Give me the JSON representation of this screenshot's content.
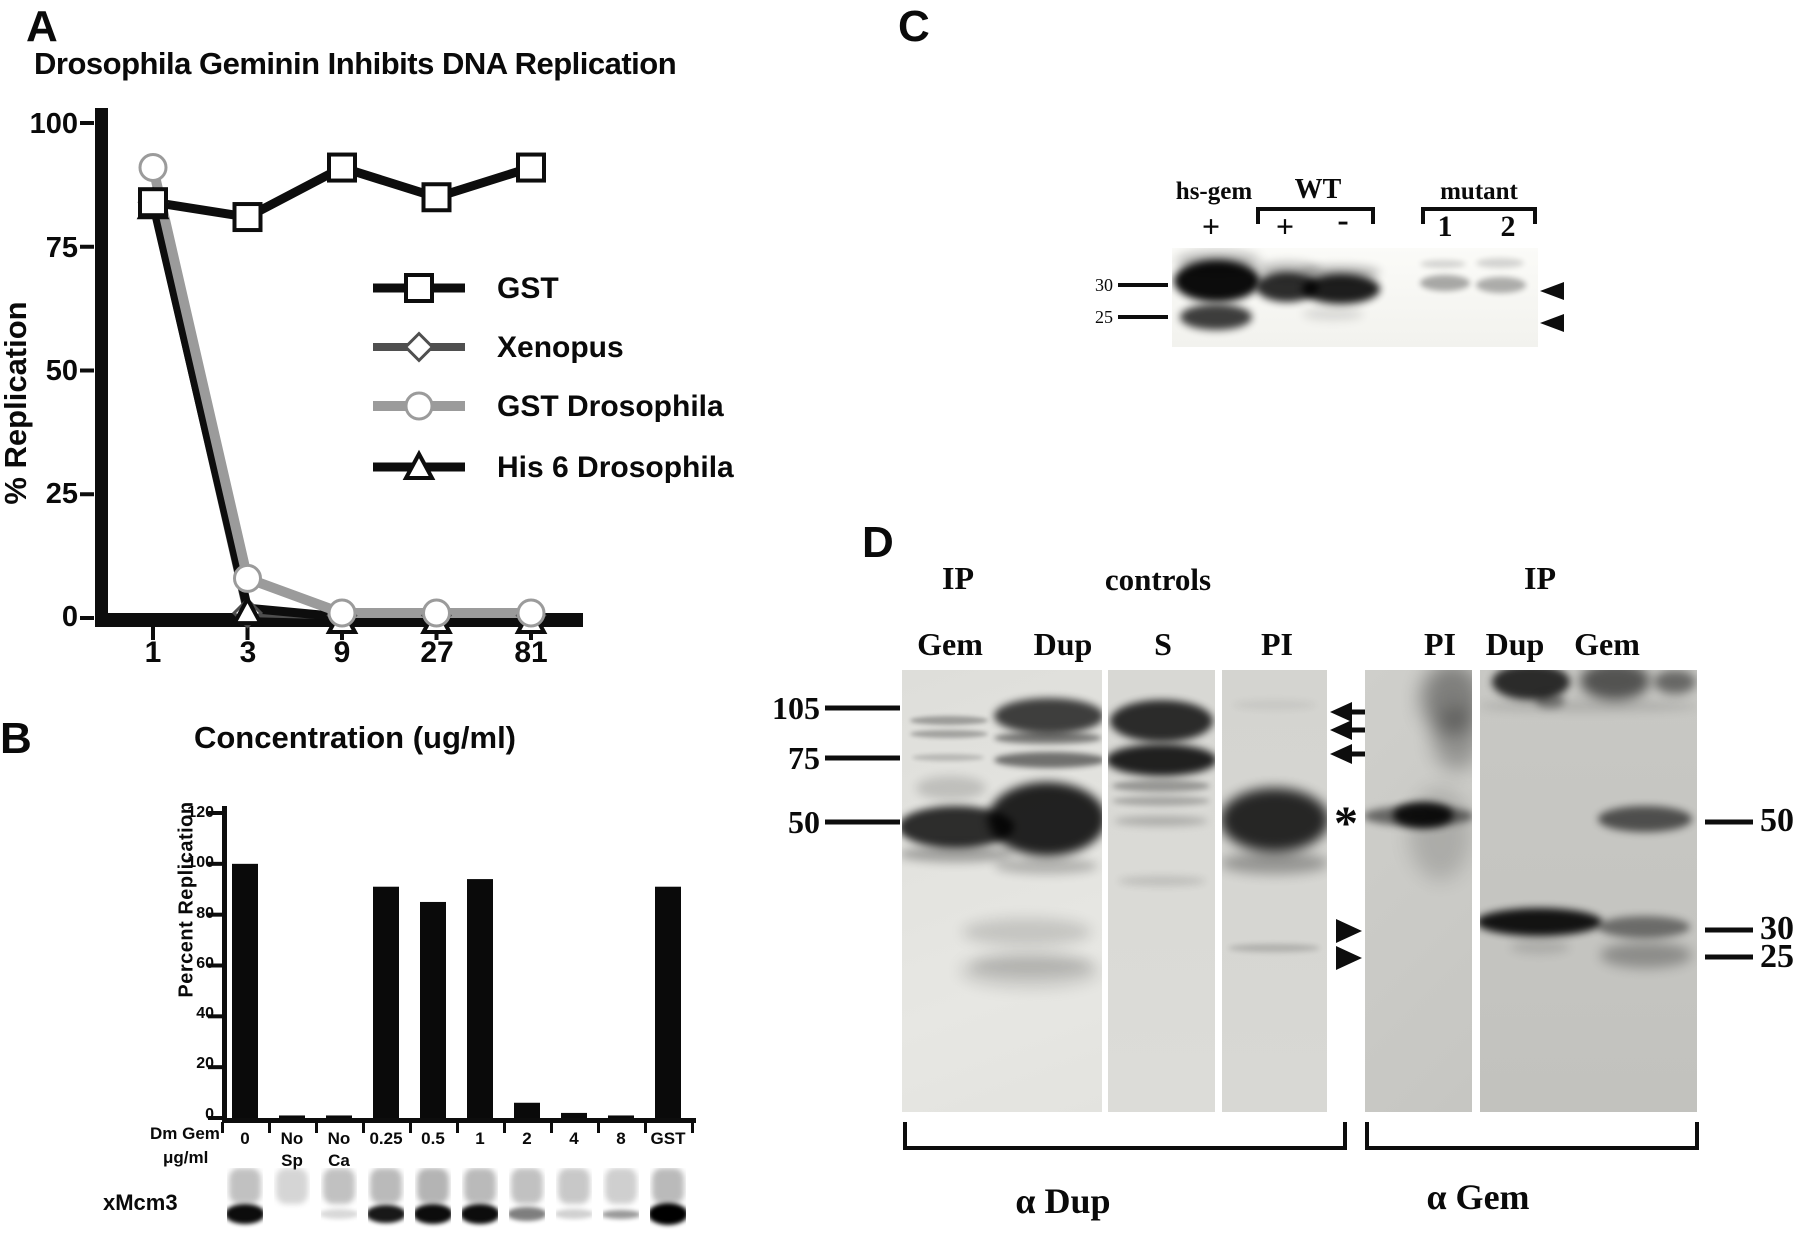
{
  "panelA": {
    "label": "A",
    "title": "Drosophila Geminin Inhibits DNA Replication",
    "y_axis": {
      "label": "% Replication",
      "ticks": [
        "100",
        "75",
        "50",
        "25",
        "0"
      ]
    },
    "x_axis": {
      "label": "Concentration (ug/ml)",
      "ticks": [
        "1",
        "3",
        "9",
        "27",
        "81"
      ]
    }
  },
  "panelB": {
    "label": "B",
    "y_axis": {
      "label": "Percent Replication",
      "ticks": [
        "120",
        "100",
        "80",
        "60",
        "40",
        "20",
        "0"
      ]
    },
    "x_axis": {
      "row_label_line1": "Dm Gem",
      "row_label_line2": "μg/ml",
      "categories_lines": [
        [
          "0"
        ],
        [
          "No",
          "Sp"
        ],
        [
          "No",
          "Ca"
        ],
        [
          "0.25"
        ],
        [
          "0.5"
        ],
        [
          "1"
        ],
        [
          "2"
        ],
        [
          "4"
        ],
        [
          "8"
        ],
        [
          "GST"
        ]
      ]
    },
    "blot_label": "xMcm3"
  },
  "panelC": {
    "label": "C",
    "group_labels": {
      "hsgem": "hs-gem",
      "wt": "WT",
      "mutant": "mutant"
    },
    "lane_labels": {
      "hsgem_plus": "+",
      "wt_plus": "+",
      "wt_minus": "-",
      "mutant1": "1",
      "mutant2": "2"
    },
    "markers": {
      "m30": "30",
      "m25": "25"
    }
  },
  "panelD": {
    "label": "D",
    "headers": {
      "ip_left": "IP",
      "controls": "controls",
      "ip_right": "IP"
    },
    "lane_labels": {
      "gem_l": "Gem",
      "dup_l": "Dup",
      "s": "S",
      "pi_l": "PI",
      "pi_r": "PI",
      "dup_r": "Dup",
      "gem_r": "Gem"
    },
    "markers_left": {
      "m105": "105",
      "m75": "75",
      "m50": "50"
    },
    "markers_right": {
      "m50": "50",
      "m30": "30",
      "m25": "25"
    },
    "annotations": {
      "asterisk": "*"
    },
    "bottom_labels": {
      "adup": "α Dup",
      "agem": "α Gem"
    }
  },
  "chart_data": [
    {
      "type": "line",
      "title": "Drosophila Geminin Inhibits DNA Replication",
      "xlabel": "Concentration (ug/ml)",
      "ylabel": "% Replication",
      "x": [
        1,
        3,
        9,
        27,
        81
      ],
      "x_scale": "log3",
      "ylim": [
        0,
        100
      ],
      "yticks": [
        100,
        75,
        50,
        25,
        0
      ],
      "legend_position": "center-right",
      "grid": false,
      "series": [
        {
          "name": "GST",
          "marker": "square",
          "color": "#0d0d0d",
          "values": [
            84,
            81,
            91,
            85,
            91
          ]
        },
        {
          "name": "Xenopus",
          "marker": "diamond",
          "color": "#4f4f4f",
          "values": [
            84,
            1,
            0.5,
            0.5,
            0.5
          ]
        },
        {
          "name": "GST Drosophila",
          "marker": "circle",
          "color": "#9b9b9b",
          "values": [
            91,
            8,
            1,
            1,
            1
          ]
        },
        {
          "name": "His 6 Drosophila",
          "marker": "triangle",
          "color": "#0d0d0d",
          "values": [
            84,
            2,
            0.2,
            0.2,
            0.2
          ]
        }
      ]
    },
    {
      "type": "bar",
      "ylabel": "Percent Replication",
      "categories": [
        "0",
        "No Sp",
        "No Ca",
        "0.25",
        "0.5",
        "1",
        "2",
        "4",
        "8",
        "GST"
      ],
      "values": [
        100,
        1,
        1,
        91,
        85,
        94,
        6,
        2,
        1,
        91
      ],
      "ylim": [
        0,
        120
      ],
      "bar_color": "#0a0a0a",
      "grid": false
    }
  ]
}
